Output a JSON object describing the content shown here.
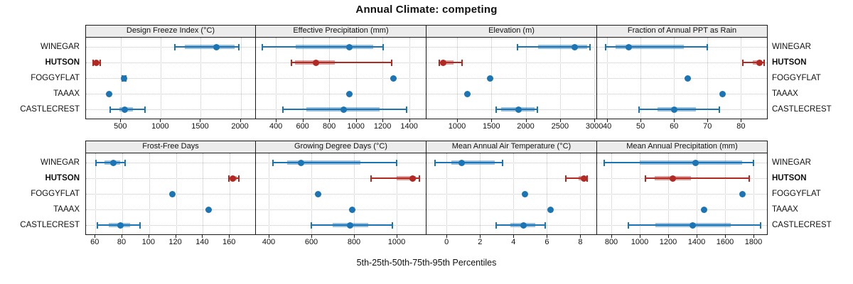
{
  "title": "Annual Climate: competing",
  "caption": "5th-25th-50th-75th-95th Percentiles",
  "stations": [
    "WINEGAR",
    "HUTSON",
    "FOGGYFLAT",
    "TAAAX",
    "CASTLECREST"
  ],
  "highlight_station": "HUTSON",
  "colors": {
    "series": "#1b74b4",
    "highlight": "#b22822",
    "grid": "#c2c2c2",
    "header_bg": "#ececec",
    "border": "#1a1a1a",
    "text": "#111111"
  },
  "chart_data": {
    "type": "scatter",
    "subtype": "trellis-dot-whisker",
    "rows": 2,
    "cols": 4,
    "percentile_labels": [
      "5th",
      "25th",
      "50th",
      "75th",
      "95th"
    ],
    "legend_position": "none",
    "grid": "dotted",
    "panels": [
      {
        "title": "Design Freeze Index (°C)",
        "xlim": [
          60,
          2200
        ],
        "ticks": [
          500,
          1000,
          1500,
          2000
        ],
        "values": [
          [
            1175,
            1300,
            1700,
            1925,
            1980
          ],
          [
            145,
            165,
            185,
            210,
            235
          ],
          [
            515,
            525,
            535,
            545,
            555
          ],
          [
            342,
            346,
            352,
            358,
            362
          ],
          [
            360,
            480,
            545,
            650,
            800
          ]
        ]
      },
      {
        "title": "Effective Precipitation (mm)",
        "xlim": [
          250,
          1530
        ],
        "ticks": [
          400,
          600,
          800,
          1000,
          1200,
          1400
        ],
        "values": [
          [
            300,
            550,
            950,
            1130,
            1205
          ],
          [
            515,
            545,
            700,
            840,
            1270
          ],
          [
            1272,
            1277,
            1282,
            1287,
            1292
          ],
          [
            942,
            947,
            952,
            957,
            962
          ],
          [
            455,
            630,
            910,
            1180,
            1380
          ]
        ]
      },
      {
        "title": "Elevation (m)",
        "xlim": [
          555,
          3040
        ],
        "ticks": [
          1000,
          1500,
          2000,
          2500,
          3000
        ],
        "values": [
          [
            1880,
            2180,
            2715,
            2900,
            2940
          ],
          [
            740,
            770,
            800,
            950,
            1075
          ],
          [
            1470,
            1475,
            1480,
            1485,
            1490
          ],
          [
            1142,
            1146,
            1150,
            1154,
            1158
          ],
          [
            1570,
            1640,
            1900,
            2130,
            2175
          ]
        ]
      },
      {
        "title": "Fraction of Annual PPT as Rain",
        "xlim": [
          37,
          88
        ],
        "ticks": [
          40,
          50,
          60,
          70,
          80
        ],
        "values": [
          [
            39.5,
            42.5,
            46.5,
            63,
            70
          ],
          [
            80.5,
            83.5,
            85.5,
            86.3,
            86.9
          ],
          [
            63.7,
            63.85,
            64,
            64.15,
            64.3
          ],
          [
            74.2,
            74.35,
            74.5,
            74.65,
            74.8
          ],
          [
            49.5,
            55,
            60,
            66.5,
            73.5
          ]
        ]
      },
      {
        "title": "Frost-Free Days",
        "xlim": [
          53,
          180
        ],
        "ticks": [
          60,
          80,
          100,
          120,
          140,
          160
        ],
        "values": [
          [
            60.5,
            67,
            73.5,
            78.5,
            82
          ],
          [
            159.5,
            161,
            162.5,
            165,
            167
          ],
          [
            117,
            117.2,
            117.5,
            117.8,
            118
          ],
          [
            144,
            144.2,
            144.5,
            144.8,
            145
          ],
          [
            61.5,
            70,
            78.5,
            86,
            93
          ]
        ]
      },
      {
        "title": "Growing Degree Days (°C)",
        "xlim": [
          340,
          1140
        ],
        "ticks": [
          400,
          600,
          800,
          1000
        ],
        "values": [
          [
            420,
            485,
            550,
            830,
            1000
          ],
          [
            880,
            1000,
            1075,
            1090,
            1105
          ],
          [
            627,
            628,
            630,
            632,
            633
          ],
          [
            787,
            788,
            790,
            792,
            793
          ],
          [
            600,
            700,
            780,
            865,
            980
          ]
        ]
      },
      {
        "title": "Mean Annual Air Temperature (°C)",
        "xlim": [
          -1.2,
          9.0
        ],
        "ticks": [
          0,
          2,
          4,
          6,
          8
        ],
        "values": [
          [
            -0.7,
            0.3,
            0.9,
            2.9,
            3.35
          ],
          [
            7.15,
            7.9,
            8.2,
            8.3,
            8.4
          ],
          [
            4.65,
            4.68,
            4.7,
            4.72,
            4.75
          ],
          [
            6.15,
            6.18,
            6.2,
            6.22,
            6.25
          ],
          [
            2.95,
            3.8,
            4.6,
            5.3,
            5.9
          ]
        ]
      },
      {
        "title": "Mean Annual Precipitation (mm)",
        "xlim": [
          700,
          1900
        ],
        "ticks": [
          800,
          1000,
          1200,
          1400,
          1600,
          1800
        ],
        "values": [
          [
            750,
            1000,
            1390,
            1720,
            1800
          ],
          [
            1040,
            1105,
            1230,
            1360,
            1770
          ],
          [
            1712,
            1716,
            1720,
            1724,
            1728
          ],
          [
            1442,
            1446,
            1450,
            1454,
            1458
          ],
          [
            920,
            1110,
            1370,
            1640,
            1850
          ]
        ]
      }
    ]
  }
}
